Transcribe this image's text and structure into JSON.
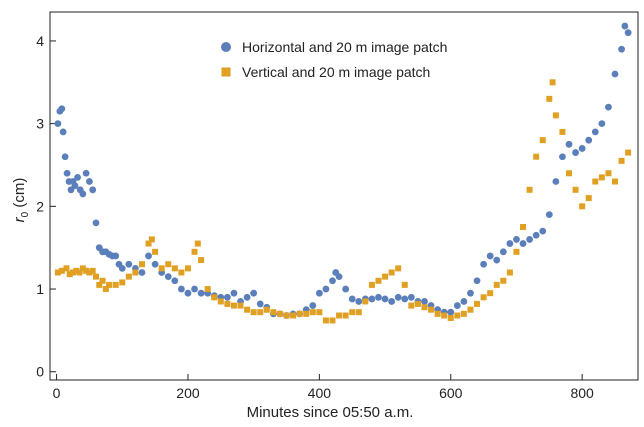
{
  "chart_data": {
    "type": "scatter",
    "xlabel": "Minutes since 05:50 a.m.",
    "ylabel_main": "r",
    "ylabel_sub": "0",
    "ylabel_unit": " (cm)",
    "xlim": [
      -10,
      885
    ],
    "ylim": [
      -0.1,
      4.35
    ],
    "xticks": [
      0,
      200,
      400,
      600,
      800
    ],
    "yticks": [
      0,
      1,
      2,
      3,
      4
    ],
    "legend_position": "top-center",
    "series": [
      {
        "name": "Horizontal and 20 m image patch",
        "color": "#5b7fba",
        "marker": "circle",
        "x": [
          2,
          5,
          8,
          10,
          13,
          16,
          19,
          22,
          25,
          28,
          32,
          36,
          40,
          45,
          50,
          55,
          60,
          65,
          70,
          75,
          80,
          85,
          90,
          95,
          100,
          110,
          120,
          130,
          140,
          150,
          160,
          170,
          180,
          190,
          200,
          210,
          220,
          230,
          240,
          250,
          260,
          270,
          280,
          290,
          300,
          310,
          320,
          330,
          340,
          350,
          360,
          370,
          380,
          390,
          400,
          410,
          420,
          425,
          430,
          440,
          450,
          460,
          470,
          480,
          490,
          500,
          510,
          520,
          530,
          540,
          550,
          560,
          570,
          580,
          590,
          600,
          610,
          620,
          630,
          640,
          650,
          660,
          670,
          680,
          690,
          700,
          710,
          720,
          730,
          740,
          750,
          760,
          770,
          780,
          790,
          800,
          810,
          820,
          830,
          840,
          850,
          860,
          865,
          870
        ],
        "y": [
          3.0,
          3.15,
          3.18,
          2.9,
          2.6,
          2.4,
          2.3,
          2.2,
          2.3,
          2.25,
          2.35,
          2.2,
          2.15,
          2.4,
          2.3,
          2.2,
          1.8,
          1.5,
          1.45,
          1.45,
          1.42,
          1.4,
          1.4,
          1.3,
          1.25,
          1.3,
          1.25,
          1.2,
          1.4,
          1.3,
          1.2,
          1.15,
          1.1,
          1.0,
          0.95,
          1.0,
          0.95,
          0.95,
          0.92,
          0.9,
          0.9,
          0.95,
          0.85,
          0.9,
          0.95,
          0.82,
          0.78,
          0.7,
          0.7,
          0.68,
          0.7,
          0.7,
          0.75,
          0.8,
          0.95,
          1.0,
          1.1,
          1.2,
          1.15,
          1.0,
          0.88,
          0.85,
          0.88,
          0.88,
          0.9,
          0.88,
          0.85,
          0.9,
          0.88,
          0.9,
          0.85,
          0.85,
          0.8,
          0.75,
          0.72,
          0.72,
          0.8,
          0.85,
          0.95,
          1.1,
          1.3,
          1.4,
          1.35,
          1.45,
          1.55,
          1.6,
          1.55,
          1.6,
          1.65,
          1.7,
          1.9,
          2.3,
          2.6,
          2.75,
          2.65,
          2.7,
          2.8,
          2.9,
          3.0,
          3.2,
          3.6,
          3.9,
          4.18,
          4.1
        ]
      },
      {
        "name": "Vertical and 20 m image patch",
        "color": "#e0a024",
        "marker": "square",
        "x": [
          2,
          8,
          15,
          20,
          25,
          30,
          35,
          40,
          45,
          50,
          55,
          60,
          65,
          70,
          75,
          80,
          90,
          100,
          110,
          120,
          130,
          140,
          145,
          150,
          160,
          170,
          180,
          190,
          200,
          210,
          215,
          220,
          230,
          240,
          250,
          260,
          270,
          280,
          290,
          300,
          310,
          320,
          330,
          340,
          350,
          360,
          370,
          380,
          390,
          400,
          410,
          420,
          430,
          440,
          450,
          460,
          470,
          480,
          490,
          500,
          510,
          520,
          530,
          540,
          550,
          560,
          570,
          580,
          590,
          600,
          610,
          620,
          630,
          640,
          650,
          660,
          670,
          680,
          690,
          700,
          710,
          720,
          730,
          740,
          750,
          755,
          760,
          770,
          780,
          790,
          800,
          810,
          820,
          830,
          840,
          850,
          860,
          870
        ],
        "y": [
          1.2,
          1.22,
          1.25,
          1.18,
          1.2,
          1.22,
          1.2,
          1.25,
          1.22,
          1.2,
          1.22,
          1.15,
          1.05,
          1.1,
          1.0,
          1.05,
          1.05,
          1.08,
          1.15,
          1.2,
          1.3,
          1.55,
          1.6,
          1.45,
          1.25,
          1.3,
          1.25,
          1.2,
          1.25,
          1.45,
          1.55,
          1.35,
          1.0,
          0.9,
          0.85,
          0.82,
          0.8,
          0.8,
          0.75,
          0.72,
          0.72,
          0.75,
          0.72,
          0.7,
          0.68,
          0.68,
          0.7,
          0.7,
          0.72,
          0.72,
          0.62,
          0.62,
          0.68,
          0.68,
          0.72,
          0.72,
          0.85,
          1.05,
          1.1,
          1.15,
          1.2,
          1.25,
          1.05,
          0.8,
          0.82,
          0.78,
          0.75,
          0.7,
          0.68,
          0.65,
          0.68,
          0.7,
          0.75,
          0.82,
          0.9,
          0.95,
          1.05,
          1.1,
          1.2,
          1.45,
          1.75,
          2.2,
          2.6,
          2.8,
          3.3,
          3.5,
          3.1,
          2.9,
          2.4,
          2.2,
          2.0,
          2.1,
          2.3,
          2.35,
          2.4,
          2.3,
          2.55,
          2.65
        ]
      }
    ]
  }
}
